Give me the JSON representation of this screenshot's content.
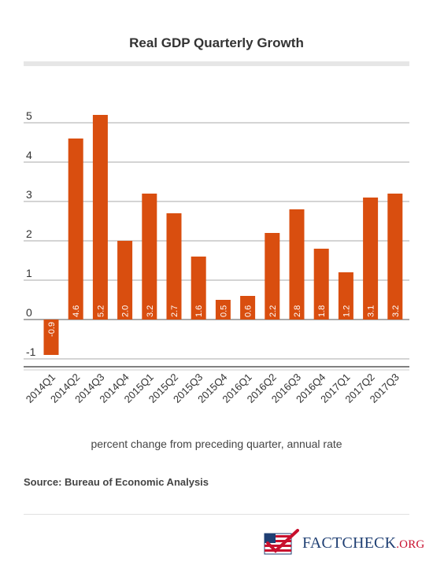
{
  "title": "Real GDP Quarterly Growth",
  "caption": "percent change from preceding quarter, annual rate",
  "source": "Source: Bureau of Economic Analysis",
  "logo": {
    "text": "FACTCHECK",
    "suffix": ".ORG"
  },
  "colors": {
    "bar": "#d94e0f",
    "grid": "#aaaaaa",
    "axis": "#555555",
    "title_rule": "#e6e6e6"
  },
  "chart_data": {
    "type": "bar",
    "categories": [
      "2014Q1",
      "2014Q2",
      "2014Q3",
      "2014Q4",
      "2015Q1",
      "2015Q2",
      "2015Q3",
      "2015Q4",
      "2016Q1",
      "2016Q2",
      "2016Q3",
      "2016Q4",
      "2017Q1",
      "2017Q2",
      "2017Q3"
    ],
    "values": [
      -0.9,
      4.6,
      5.2,
      2.0,
      3.2,
      2.7,
      1.6,
      0.5,
      0.6,
      2.2,
      2.8,
      1.8,
      1.2,
      3.1,
      3.2
    ],
    "data_labels": [
      "-0.9",
      "4.6",
      "5.2",
      "2.0",
      "3.2",
      "2.7",
      "1.6",
      "0.5",
      "0.6",
      "2.2",
      "2.8",
      "1.8",
      "1.2",
      "3.1",
      "3.2"
    ],
    "y_ticks": [
      "-1",
      "0",
      "1",
      "2",
      "3",
      "4",
      "5"
    ],
    "ylim": [
      -1,
      5
    ],
    "grid": true,
    "legend": "none"
  }
}
